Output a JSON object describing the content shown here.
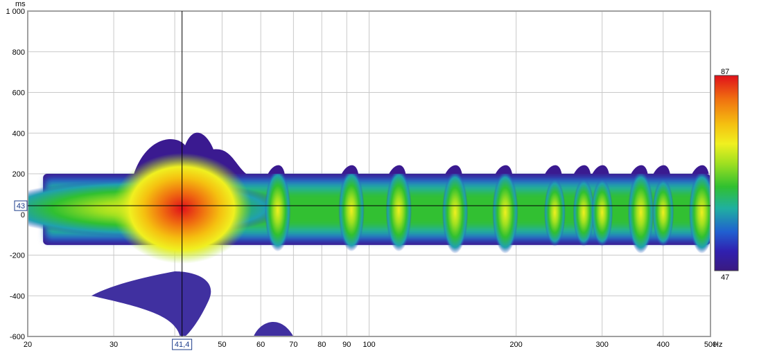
{
  "chart_data": {
    "type": "heatmap",
    "title": "",
    "xlabel": "",
    "ylabel": "",
    "x_unit": "Hz",
    "y_unit": "ms",
    "x_scale": "log",
    "xlim": [
      20,
      500
    ],
    "ylim": [
      -600,
      1000
    ],
    "x_ticks": [
      "20",
      "30",
      "40",
      "50",
      "60",
      "70",
      "80",
      "90",
      "100",
      "200",
      "300",
      "400",
      "500"
    ],
    "y_ticks": [
      "1 000",
      "800",
      "600",
      "400",
      "200",
      "0",
      "-200",
      "-400",
      "-600"
    ],
    "y_tick_values": [
      1000,
      800,
      600,
      400,
      200,
      0,
      -200,
      -400,
      -600
    ],
    "grid": true,
    "colorbar": {
      "max_label": "87",
      "min_label": "47",
      "colors": [
        "#e0101a",
        "#f07010",
        "#f5c010",
        "#f0f020",
        "#a0e020",
        "#30c030",
        "#20b0a0",
        "#2060d0",
        "#3020b0",
        "#3a1a80"
      ]
    },
    "cursor": {
      "x_label": "41,4",
      "y_label": "43",
      "x": 41.4,
      "y": 43
    },
    "bands": [
      {
        "x_from": 21.5,
        "x_to": 500,
        "y_top": 200,
        "y_bottom": -150,
        "peak_level": "mid"
      },
      {
        "x_from": 25,
        "x_to": 55,
        "peak_x": 41.4,
        "peak_y": 30,
        "peak_level": "max"
      }
    ],
    "peaks": [
      {
        "x": 41.4,
        "y": 30,
        "level": "high"
      },
      {
        "x": 65,
        "y": 20,
        "level": "mid"
      },
      {
        "x": 92,
        "y": 20,
        "level": "mid"
      },
      {
        "x": 115,
        "y": 20,
        "level": "mid"
      },
      {
        "x": 150,
        "y": 10,
        "level": "mid"
      },
      {
        "x": 190,
        "y": 10,
        "level": "mid"
      },
      {
        "x": 240,
        "y": 10,
        "level": "low"
      },
      {
        "x": 275,
        "y": 10,
        "level": "low"
      },
      {
        "x": 300,
        "y": 10,
        "level": "low"
      },
      {
        "x": 360,
        "y": 10,
        "level": "mid"
      },
      {
        "x": 400,
        "y": 10,
        "level": "low"
      },
      {
        "x": 480,
        "y": 10,
        "level": "mid"
      }
    ]
  }
}
